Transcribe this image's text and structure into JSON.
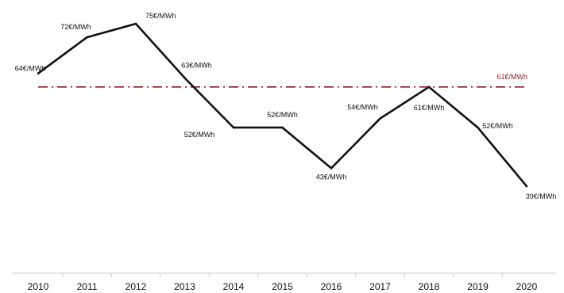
{
  "chart_data": {
    "type": "line",
    "x": [
      "2010",
      "2011",
      "2012",
      "2013",
      "2014",
      "2015",
      "2016",
      "2017",
      "2018",
      "2019",
      "2020"
    ],
    "series": [
      {
        "values": [
          64,
          72,
          75,
          63,
          52,
          52,
          43,
          54,
          61,
          52,
          39
        ],
        "labels": [
          "64€/MWh",
          "72€/MWh",
          "75€/MWh",
          "63€/MWh",
          "52€/MWh",
          "52€/MWh",
          "43€/MWh",
          "54€/MWh",
          "61€/MWh",
          "52€/MWh",
          "39€/MWh"
        ],
        "color": "#111111"
      }
    ],
    "reference_line": {
      "value": 61,
      "label": "61€/MWh",
      "color": "#8b1a1a",
      "style": "dash-dot"
    },
    "title": "",
    "xlabel": "",
    "ylabel": "",
    "ylim": [
      30,
      80
    ],
    "grid": false,
    "legend": "none"
  }
}
